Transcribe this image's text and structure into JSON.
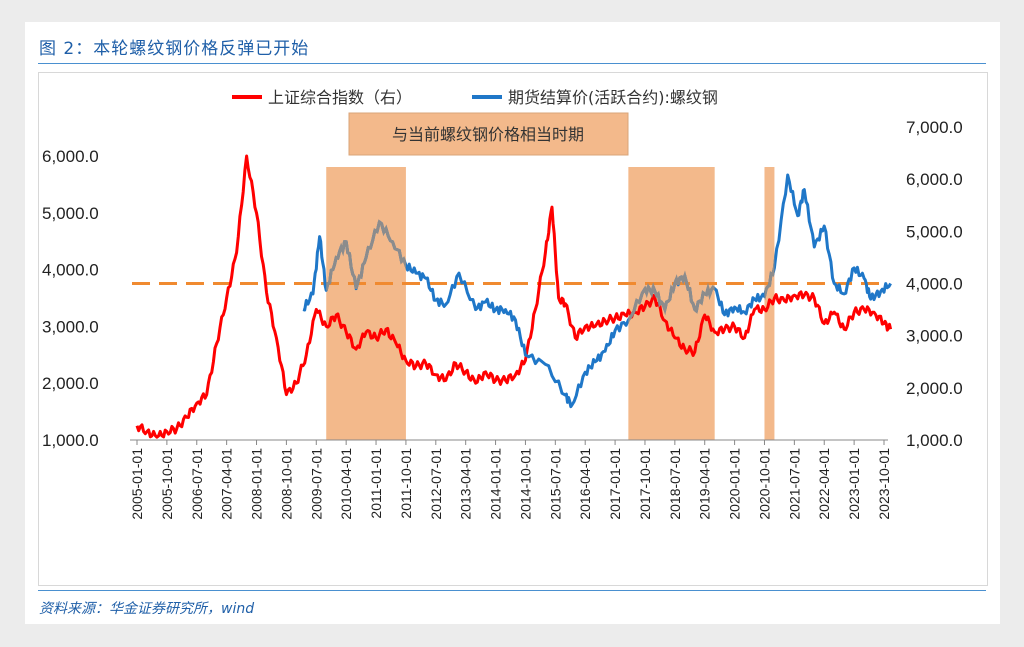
{
  "figure": {
    "title": "图 2：本轮螺纹钢价格反弹已开始",
    "source": "资料来源：华金证券研究所，wind"
  },
  "chart_data": {
    "type": "line",
    "legend_placement": "top",
    "grid": false,
    "annotation": "与当前螺纹钢价格相当时期",
    "x_ticks": [
      "2005-01-01",
      "2005-10-01",
      "2006-07-01",
      "2007-04-01",
      "2008-01-01",
      "2008-10-01",
      "2009-07-01",
      "2010-04-01",
      "2011-01-01",
      "2011-10-01",
      "2012-07-01",
      "2013-04-01",
      "2014-01-01",
      "2014-10-01",
      "2015-07-01",
      "2016-04-01",
      "2017-01-01",
      "2017-10-01",
      "2018-07-01",
      "2019-04-01",
      "2020-01-01",
      "2020-10-01",
      "2021-07-01",
      "2022-04-01",
      "2023-01-01",
      "2023-10-01"
    ],
    "left_axis": {
      "ylim": [
        1000,
        6000
      ],
      "ticks": [
        "1,000.0",
        "2,000.0",
        "3,000.0",
        "4,000.0",
        "5,000.0",
        "6,000.0"
      ]
    },
    "right_axis": {
      "ylim": [
        1000,
        7000
      ],
      "ticks": [
        "1,000.0",
        "2,000.0",
        "3,000.0",
        "4,000.0",
        "5,000.0",
        "6,000.0",
        "7,000.0"
      ]
    },
    "reference_line": {
      "value_right_axis": 4000,
      "color": "#f08a30",
      "style": "dashed"
    },
    "shaded_periods": [
      [
        "2009-10",
        "2011-10"
      ],
      [
        "2017-05",
        "2019-07"
      ],
      [
        "2020-10",
        "2021-01"
      ]
    ],
    "shade_color": "#f3b98b",
    "series": [
      {
        "name": "上证综合指数（右）",
        "color": "#ff0000",
        "axis": "left",
        "x": [
          "2005-01",
          "2005-04",
          "2005-07",
          "2005-10",
          "2006-01",
          "2006-04",
          "2006-07",
          "2006-10",
          "2007-01",
          "2007-04",
          "2007-07",
          "2007-10",
          "2008-01",
          "2008-04",
          "2008-07",
          "2008-10",
          "2009-01",
          "2009-04",
          "2009-07",
          "2009-10",
          "2010-01",
          "2010-04",
          "2010-07",
          "2010-10",
          "2011-01",
          "2011-04",
          "2011-07",
          "2011-10",
          "2012-01",
          "2012-04",
          "2012-07",
          "2012-10",
          "2013-01",
          "2013-04",
          "2013-07",
          "2013-10",
          "2014-01",
          "2014-04",
          "2014-07",
          "2014-10",
          "2015-01",
          "2015-04",
          "2015-06",
          "2015-08",
          "2015-10",
          "2016-01",
          "2016-04",
          "2016-07",
          "2016-10",
          "2017-01",
          "2017-04",
          "2017-07",
          "2017-10",
          "2018-01",
          "2018-04",
          "2018-07",
          "2018-10",
          "2019-01",
          "2019-04",
          "2019-07",
          "2019-10",
          "2020-01",
          "2020-04",
          "2020-07",
          "2020-10",
          "2021-01",
          "2021-04",
          "2021-07",
          "2021-10",
          "2022-01",
          "2022-04",
          "2022-07",
          "2022-10",
          "2023-01",
          "2023-04",
          "2023-07",
          "2023-10",
          "2023-12"
        ],
        "y": [
          1250,
          1150,
          1050,
          1150,
          1200,
          1400,
          1650,
          1800,
          2700,
          3500,
          4300,
          6000,
          5000,
          3600,
          2800,
          1800,
          2000,
          2500,
          3300,
          3000,
          3200,
          2900,
          2600,
          2900,
          2800,
          2950,
          2700,
          2400,
          2300,
          2350,
          2150,
          2050,
          2350,
          2200,
          2000,
          2200,
          2050,
          2050,
          2150,
          2400,
          3300,
          4300,
          5100,
          3500,
          3400,
          2800,
          3000,
          3000,
          3100,
          3150,
          3200,
          3250,
          3350,
          3500,
          3100,
          2800,
          2600,
          2550,
          3200,
          2900,
          2950,
          3000,
          2800,
          3300,
          3300,
          3500,
          3450,
          3550,
          3550,
          3500,
          3050,
          3250,
          2950,
          3250,
          3300,
          3250,
          3050,
          2950
        ]
      },
      {
        "name": "期货结算价(活跃合约):螺纹钢",
        "color": "#1f77c8",
        "axis": "right",
        "x": [
          "2009-03",
          "2009-06",
          "2009-08",
          "2009-10",
          "2010-01",
          "2010-04",
          "2010-07",
          "2010-10",
          "2011-02",
          "2011-06",
          "2011-10",
          "2012-01",
          "2012-04",
          "2012-07",
          "2012-10",
          "2013-02",
          "2013-07",
          "2013-10",
          "2014-01",
          "2014-04",
          "2014-07",
          "2014-10",
          "2015-04",
          "2015-10",
          "2015-12",
          "2016-04",
          "2016-07",
          "2016-10",
          "2017-01",
          "2017-05",
          "2017-10",
          "2018-01",
          "2018-04",
          "2018-07",
          "2018-10",
          "2019-01",
          "2019-04",
          "2019-07",
          "2019-10",
          "2020-01",
          "2020-04",
          "2020-07",
          "2020-10",
          "2021-01",
          "2021-05",
          "2021-08",
          "2021-10",
          "2022-01",
          "2022-04",
          "2022-07",
          "2022-10",
          "2023-01",
          "2023-04",
          "2023-06",
          "2023-09",
          "2023-12"
        ],
        "y": [
          3500,
          3800,
          4900,
          3870,
          4500,
          4800,
          3900,
          4500,
          5180,
          4800,
          4350,
          4200,
          4100,
          3680,
          3600,
          4200,
          3500,
          3650,
          3500,
          3500,
          3300,
          2630,
          2450,
          1860,
          1670,
          2300,
          2500,
          2700,
          3100,
          3300,
          3900,
          3850,
          3500,
          4000,
          4150,
          3500,
          3800,
          3900,
          3400,
          3550,
          3450,
          3700,
          3750,
          4300,
          6080,
          5300,
          5800,
          4700,
          5100,
          4000,
          3800,
          4300,
          4100,
          3700,
          3850,
          4000
        ]
      }
    ]
  }
}
